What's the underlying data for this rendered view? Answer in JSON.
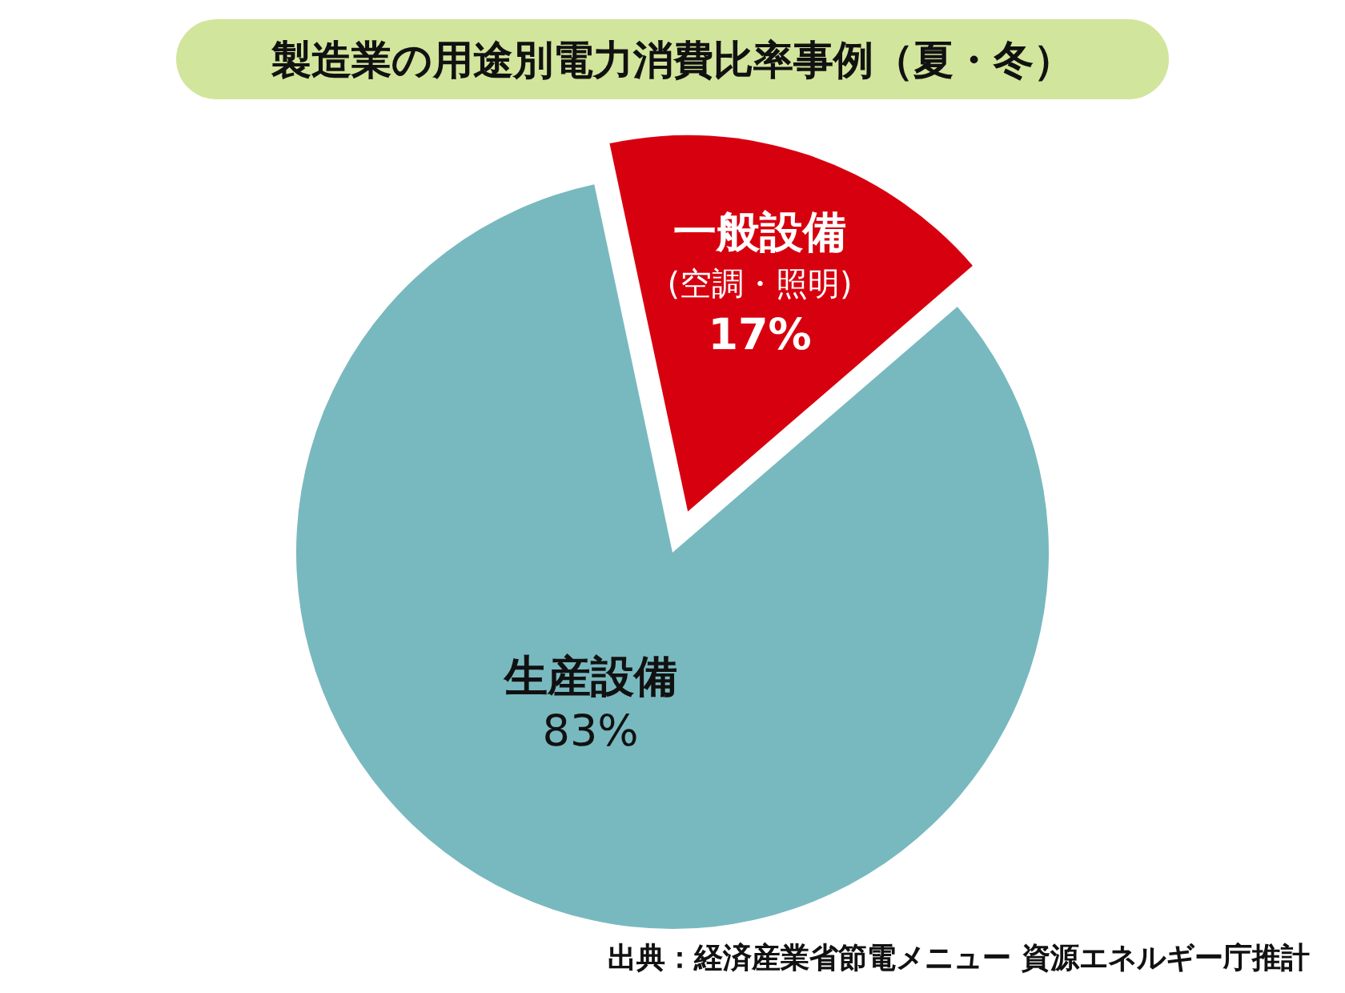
{
  "chart_data": {
    "type": "pie",
    "title": "製造業の用途別電力消費比率事例（夏・冬）",
    "categories": [
      "一般設備\n(空調・照明)",
      "生産設備"
    ],
    "values": [
      17,
      83
    ],
    "value_labels": [
      "17%",
      "83%"
    ],
    "colors": [
      "#d7000f",
      "#78b9bf"
    ],
    "annotations": [
      "出典：経済産業省節電メニュー 資源エネルギー庁推計"
    ]
  }
}
